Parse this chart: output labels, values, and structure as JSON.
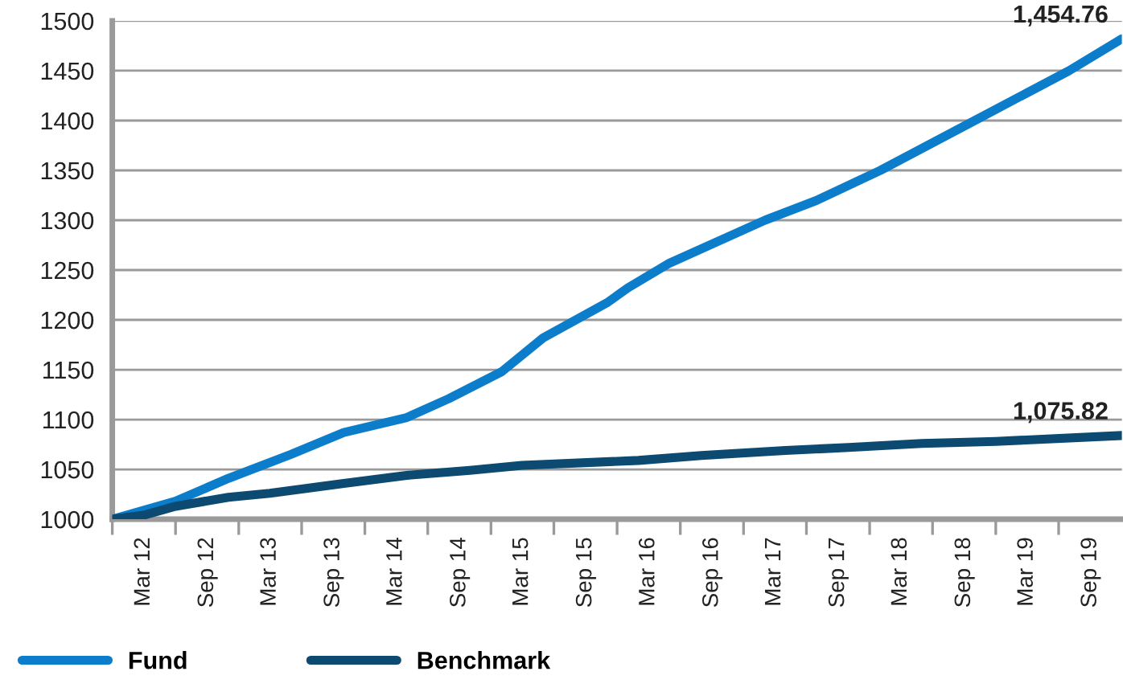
{
  "chart_data": {
    "type": "line",
    "series": [
      {
        "name": "Fund",
        "color": "#0b7dcb",
        "x": [
          "2011-12",
          "2012-06",
          "2012-11",
          "2013-05",
          "2013-10",
          "2014-04",
          "2014-08",
          "2015-01",
          "2015-05",
          "2015-11",
          "2016-01",
          "2016-05",
          "2017-02",
          "2017-07",
          "2018-01",
          "2018-10",
          "2019-07",
          "2019-12"
        ],
        "values": [
          1000,
          1018,
          1041,
          1065,
          1087,
          1102,
          1121,
          1148,
          1182,
          1217,
          1232,
          1257,
          1300,
          1320,
          1350,
          1400,
          1450,
          1482
        ]
      },
      {
        "name": "Benchmark",
        "color": "#0c4a72",
        "x": [
          "2011-12",
          "2012-03",
          "2012-06",
          "2012-11",
          "2013-03",
          "2013-10",
          "2014-04",
          "2014-10",
          "2015-03",
          "2016-02",
          "2016-08",
          "2017-04",
          "2017-10",
          "2018-05",
          "2018-12",
          "2019-12"
        ],
        "values": [
          1000,
          1004,
          1013,
          1022,
          1026,
          1036,
          1044,
          1049,
          1054,
          1059,
          1064,
          1069,
          1072,
          1076,
          1078,
          1084
        ]
      }
    ],
    "annotations": [
      "1,454.76",
      "1,075.82"
    ],
    "xlim": [
      "2011-12",
      "2019-12"
    ],
    "xticks": [
      {
        "value": "2011-12",
        "label": null
      },
      {
        "value": "2012-03",
        "label": "Mar 12"
      },
      {
        "value": "2012-06",
        "label": null
      },
      {
        "value": "2012-09",
        "label": "Sep 12"
      },
      {
        "value": "2012-12",
        "label": null
      },
      {
        "value": "2013-03",
        "label": "Mar 13"
      },
      {
        "value": "2013-06",
        "label": null
      },
      {
        "value": "2013-09",
        "label": "Sep 13"
      },
      {
        "value": "2013-12",
        "label": null
      },
      {
        "value": "2014-03",
        "label": "Mar 14"
      },
      {
        "value": "2014-06",
        "label": null
      },
      {
        "value": "2014-09",
        "label": "Sep 14"
      },
      {
        "value": "2014-12",
        "label": null
      },
      {
        "value": "2015-03",
        "label": "Mar 15"
      },
      {
        "value": "2015-06",
        "label": null
      },
      {
        "value": "2015-09",
        "label": "Sep 15"
      },
      {
        "value": "2015-12",
        "label": null
      },
      {
        "value": "2016-03",
        "label": "Mar 16"
      },
      {
        "value": "2016-06",
        "label": null
      },
      {
        "value": "2016-09",
        "label": "Sep 16"
      },
      {
        "value": "2016-12",
        "label": null
      },
      {
        "value": "2017-03",
        "label": "Mar 17"
      },
      {
        "value": "2017-06",
        "label": null
      },
      {
        "value": "2017-09",
        "label": "Sep 17"
      },
      {
        "value": "2017-12",
        "label": null
      },
      {
        "value": "2018-03",
        "label": "Mar 18"
      },
      {
        "value": "2018-06",
        "label": null
      },
      {
        "value": "2018-09",
        "label": "Sep 18"
      },
      {
        "value": "2018-12",
        "label": null
      },
      {
        "value": "2019-03",
        "label": "Mar 19"
      },
      {
        "value": "2019-06",
        "label": null
      },
      {
        "value": "2019-09",
        "label": "Sep 19"
      }
    ],
    "ylim": [
      1000,
      1500
    ],
    "yticks": [
      1000,
      1050,
      1100,
      1150,
      1200,
      1250,
      1300,
      1350,
      1400,
      1450,
      1500
    ],
    "grid": "y",
    "legend": "bottom",
    "marker": "none",
    "line_style": "solid"
  }
}
